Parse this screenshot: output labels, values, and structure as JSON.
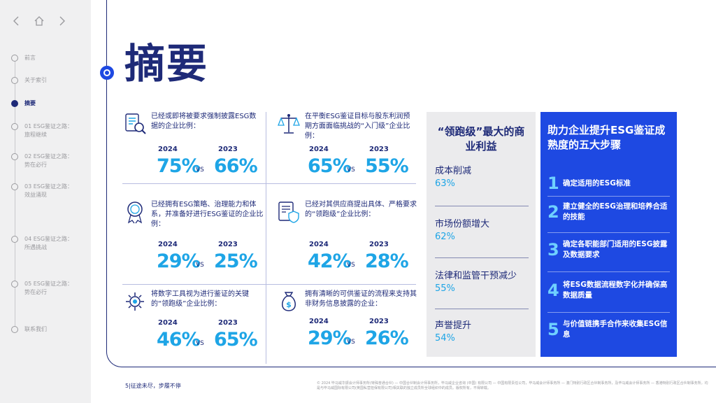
{
  "nav": {
    "back_icon": "chevron-left-icon",
    "home_icon": "home-icon",
    "forward_icon": "chevron-right-icon",
    "items": [
      {
        "label": "前言"
      },
      {
        "label": "关于索引"
      },
      {
        "label": "摘要"
      },
      {
        "label": "01 ESG鉴证之路：\n旅程继续"
      },
      {
        "label": "02 ESG鉴证之路：\n势在必行"
      },
      {
        "label": "03 ESG鉴证之路：\n效益涌现"
      },
      {
        "label": "04 ESG鉴证之路：\n所遇挑战"
      },
      {
        "label": "05 ESG鉴证之路：\n势在必行"
      },
      {
        "label": "联系我们"
      }
    ],
    "active_index": 2
  },
  "page": {
    "title": "摘要"
  },
  "stats": [
    {
      "icon": "document-search-icon",
      "desc": "已经或即将被要求强制披露ESG数据的企业比例：",
      "year_a": "2024",
      "year_b": "2023",
      "val_a": "75%",
      "val_b": "66%",
      "vs": "VS"
    },
    {
      "icon": "scales-icon",
      "desc": "在平衡ESG鉴证目标与股东利润预期方面面临挑战的“入门级”企业比例：",
      "year_a": "2024",
      "year_b": "2023",
      "val_a": "65%",
      "val_b": "55%",
      "vs": "VS"
    },
    {
      "icon": "award-badge-icon",
      "desc": "已经拥有ESG策略、治理能力和体系，并准备好进行ESG鉴证的企业比例：",
      "year_a": "2024",
      "year_b": "2023",
      "val_a": "29%",
      "val_b": "25%",
      "vs": "VS"
    },
    {
      "icon": "document-shield-icon",
      "desc": "已经对其供应商提出具体、严格要求的“领跑级”企业比例：",
      "year_a": "2024",
      "year_b": "2023",
      "val_a": "42%",
      "val_b": "28%",
      "vs": "VS"
    },
    {
      "icon": "digital-gear-icon",
      "desc": "将数字工具视为进行鉴证的关键的“领跑级”企业比例：",
      "year_a": "2024",
      "year_b": "2023",
      "val_a": "46%",
      "val_b": "65%",
      "vs": "VS"
    },
    {
      "icon": "money-bag-icon",
      "desc": "拥有清晰的可供鉴证的流程来支持其非财务信息披露的企业：",
      "year_a": "2024",
      "year_b": "2023",
      "val_a": "29%",
      "val_b": "26%",
      "vs": "VS"
    }
  ],
  "benefits": {
    "title": "“领跑级”最大的商业利益",
    "items": [
      {
        "label": "成本削减",
        "pct": "63%"
      },
      {
        "label": "市场份额增大",
        "pct": "62%"
      },
      {
        "label": "法律和监管干预减少",
        "pct": "55%"
      },
      {
        "label": "声誉提升",
        "pct": "54%"
      }
    ]
  },
  "steps": {
    "title": "助力企业提升ESG鉴证成熟度的五大步骤",
    "items": [
      {
        "num": "1",
        "text": "确定适用的ESG标准"
      },
      {
        "num": "2",
        "text": "建立健全的ESG治理和培养合适的技能"
      },
      {
        "num": "3",
        "text": "确定各职能部门适用的ESG披露及数据要求"
      },
      {
        "num": "4",
        "text": "将ESG数据流程数字化并确保高数据质量"
      },
      {
        "num": "5",
        "text": "与价值链携手合作来收集ESG信息"
      }
    ]
  },
  "footer": {
    "page_num": "5",
    "tagline": "征途未尽，步履不停",
    "copyright": "© 2024 毕马威华振会计师事务所(特殊普通合伙) — 中国合伙制会计师事务所，毕马威企业咨询 (中国) 有限公司 — 中国有限责任公司，毕马威会计师事务所 — 澳门特别行政区合伙制事务所，及毕马威会计师事务所 — 香港特别行政区合伙制事务所，均是与毕马威国际有限公司(英国私营担保有限公司)相关联的独立成员所全球组织中的成员。版权所有，不得转载。"
  },
  "colors": {
    "navy": "#1e2a78",
    "blue": "#1e49e2",
    "cyan": "#1ea5e6",
    "sidebar": "#f0f0f1"
  }
}
